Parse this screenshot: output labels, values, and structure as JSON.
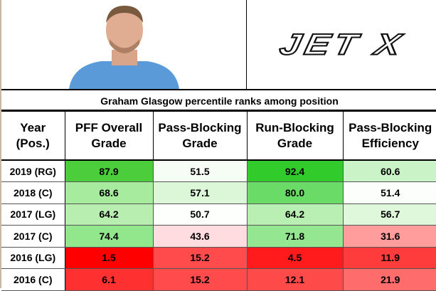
{
  "logo": {
    "text": "JET X"
  },
  "title": "Graham Glasgow percentile ranks among position",
  "headers": [
    "Year\n(Pos.)",
    "PFF Overall Grade",
    "Pass-Blocking Grade",
    "Run-Blocking Grade",
    "Pass-Blocking Efficiency"
  ],
  "headers_split": [
    [
      "Year",
      "(Pos.)"
    ],
    [
      "PFF Overall",
      "Grade"
    ],
    [
      "Pass-Blocking",
      "Grade"
    ],
    [
      "Run-Blocking",
      "Grade"
    ],
    [
      "Pass-Blocking",
      "Efficiency"
    ]
  ],
  "rows": [
    {
      "year": "2019 (RG)",
      "values": [
        "87.9",
        "51.5",
        "92.4",
        "60.6"
      ],
      "colors": [
        "#4cce3c",
        "#f6fdf4",
        "#31cc2c",
        "#cbf3c8"
      ]
    },
    {
      "year": "2018 (C)",
      "values": [
        "68.6",
        "57.1",
        "80.0",
        "51.4"
      ],
      "colors": [
        "#a6eb9e",
        "#dcf6d8",
        "#6bdb68",
        "#fcfefb"
      ]
    },
    {
      "year": "2017 (LG)",
      "values": [
        "64.2",
        "50.7",
        "64.2",
        "56.7"
      ],
      "colors": [
        "#b8efb0",
        "#fcfffb",
        "#b9efb2",
        "#dff7db"
      ]
    },
    {
      "year": "2017 (C)",
      "values": [
        "74.4",
        "43.6",
        "71.8",
        "31.6"
      ],
      "colors": [
        "#92e78c",
        "#ffdce0",
        "#95e690",
        "#ff9d9d"
      ]
    },
    {
      "year": "2016 (LG)",
      "values": [
        "1.5",
        "15.2",
        "4.5",
        "11.9"
      ],
      "colors": [
        "#ff0000",
        "#ff4b4b",
        "#ff1b1b",
        "#ff3c3c"
      ]
    },
    {
      "year": "2016 (C)",
      "values": [
        "6.1",
        "15.2",
        "12.1",
        "21.9"
      ],
      "colors": [
        "#ff3030",
        "#ff4b4b",
        "#ff4a4a",
        "#ff6c6c"
      ]
    }
  ]
}
